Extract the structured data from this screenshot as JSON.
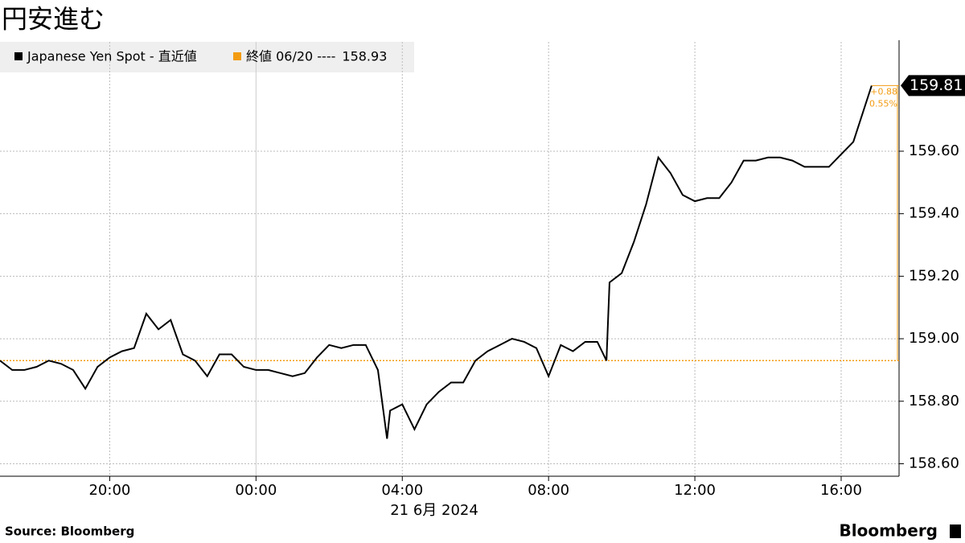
{
  "chart_data": {
    "type": "line",
    "title": "円安進む",
    "xlabel": "21 6月 2024",
    "source": "Source:  Bloomberg",
    "brand": "Bloomberg",
    "x": [
      "2024-06-20T17:00",
      "2024-06-20T17:20",
      "2024-06-20T17:40",
      "2024-06-20T18:00",
      "2024-06-20T18:20",
      "2024-06-20T18:40",
      "2024-06-20T19:00",
      "2024-06-20T19:20",
      "2024-06-20T19:40",
      "2024-06-20T20:00",
      "2024-06-20T20:20",
      "2024-06-20T20:40",
      "2024-06-20T21:00",
      "2024-06-20T21:20",
      "2024-06-20T21:40",
      "2024-06-20T22:00",
      "2024-06-20T22:20",
      "2024-06-20T22:40",
      "2024-06-20T23:00",
      "2024-06-20T23:20",
      "2024-06-20T23:40",
      "2024-06-21T00:00",
      "2024-06-21T00:20",
      "2024-06-21T00:40",
      "2024-06-21T01:00",
      "2024-06-21T01:20",
      "2024-06-21T01:40",
      "2024-06-21T02:00",
      "2024-06-21T02:20",
      "2024-06-21T02:40",
      "2024-06-21T03:00",
      "2024-06-21T03:20",
      "2024-06-21T03:35",
      "2024-06-21T03:40",
      "2024-06-21T04:00",
      "2024-06-21T04:20",
      "2024-06-21T04:40",
      "2024-06-21T05:00",
      "2024-06-21T05:20",
      "2024-06-21T05:40",
      "2024-06-21T06:00",
      "2024-06-21T06:20",
      "2024-06-21T06:40",
      "2024-06-21T07:00",
      "2024-06-21T07:20",
      "2024-06-21T07:40",
      "2024-06-21T08:00",
      "2024-06-21T08:20",
      "2024-06-21T08:40",
      "2024-06-21T09:00",
      "2024-06-21T09:20",
      "2024-06-21T09:35",
      "2024-06-21T09:40",
      "2024-06-21T10:00",
      "2024-06-21T10:20",
      "2024-06-21T10:40",
      "2024-06-21T11:00",
      "2024-06-21T11:20",
      "2024-06-21T11:40",
      "2024-06-21T12:00",
      "2024-06-21T12:20",
      "2024-06-21T12:40",
      "2024-06-21T13:00",
      "2024-06-21T13:20",
      "2024-06-21T13:40",
      "2024-06-21T14:00",
      "2024-06-21T14:20",
      "2024-06-21T14:40",
      "2024-06-21T15:00",
      "2024-06-21T15:20",
      "2024-06-21T15:40",
      "2024-06-21T16:00",
      "2024-06-21T16:20",
      "2024-06-21T16:40",
      "2024-06-21T16:50"
    ],
    "series": [
      {
        "name": "Japanese Yen Spot - 直近値",
        "color": "#000000",
        "values": [
          158.93,
          158.9,
          158.9,
          158.91,
          158.93,
          158.92,
          158.9,
          158.84,
          158.91,
          158.94,
          158.96,
          158.97,
          159.08,
          159.03,
          159.06,
          158.95,
          158.93,
          158.88,
          158.95,
          158.95,
          158.91,
          158.9,
          158.9,
          158.89,
          158.88,
          158.89,
          158.94,
          158.98,
          158.97,
          158.98,
          158.98,
          158.9,
          158.68,
          158.77,
          158.79,
          158.71,
          158.79,
          158.83,
          158.86,
          158.86,
          158.93,
          158.96,
          158.98,
          159.0,
          158.99,
          158.97,
          158.88,
          158.98,
          158.96,
          158.99,
          158.99,
          158.93,
          159.18,
          159.21,
          159.31,
          159.43,
          159.58,
          159.53,
          159.46,
          159.44,
          159.45,
          159.45,
          159.5,
          159.57,
          159.57,
          159.58,
          159.58,
          159.57,
          159.55,
          159.55,
          159.55,
          159.59,
          159.63,
          159.75,
          159.81
        ]
      }
    ],
    "reference": {
      "label": "終値 06/20 ----",
      "value": 158.93,
      "color": "#f39c12"
    },
    "change": {
      "value": 0.88,
      "label": "+0.88"
    },
    "change_pct": {
      "value": 0.55,
      "label": "0.55%"
    },
    "xlim": [
      "2024-06-20T17:00",
      "2024-06-21T17:35"
    ],
    "xticks": [
      {
        "value": "2024-06-20T20:00",
        "label": "20:00"
      },
      {
        "value": "2024-06-21T00:00",
        "label": "00:00"
      },
      {
        "value": "2024-06-21T04:00",
        "label": "04:00"
      },
      {
        "value": "2024-06-21T08:00",
        "label": "08:00"
      },
      {
        "value": "2024-06-21T12:00",
        "label": "12:00"
      },
      {
        "value": "2024-06-21T16:00",
        "label": "16:00"
      }
    ],
    "day_divider": "2024-06-21T00:00",
    "ylim": [
      158.56,
      159.95
    ],
    "yticks": [
      {
        "value": 158.6,
        "label": "158.60"
      },
      {
        "value": 158.8,
        "label": "158.80"
      },
      {
        "value": 159.0,
        "label": "159.00"
      },
      {
        "value": 159.2,
        "label": "159.20"
      },
      {
        "value": 159.4,
        "label": "159.40"
      },
      {
        "value": 159.6,
        "label": "159.60"
      }
    ],
    "grid": true
  }
}
